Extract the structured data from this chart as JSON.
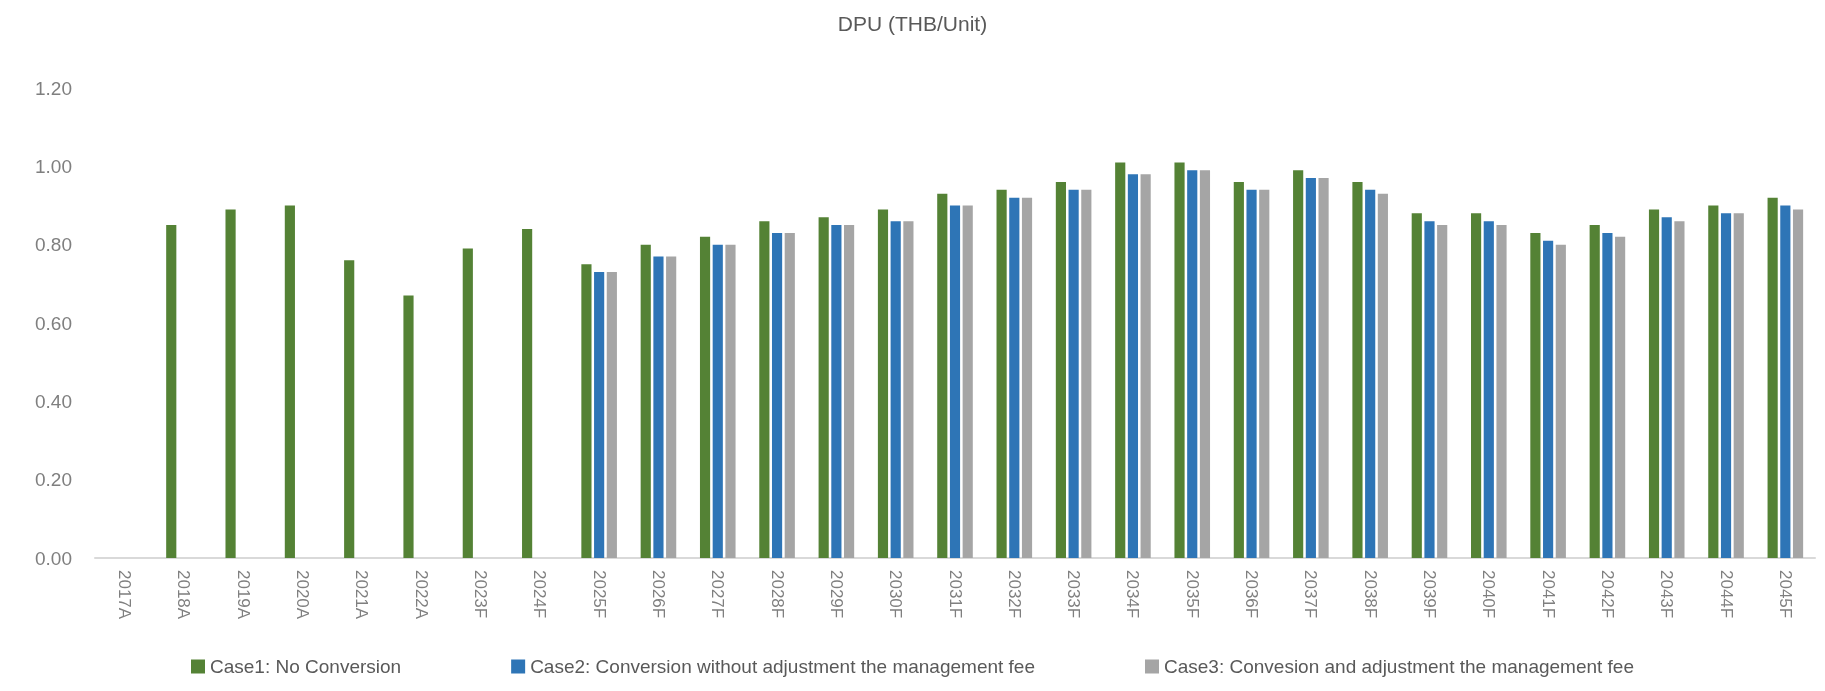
{
  "chart_data": {
    "type": "bar",
    "title": "DPU (THB/Unit)",
    "categories": [
      "2017A",
      "2018A",
      "2019A",
      "2020A",
      "2021A",
      "2022A",
      "2023F",
      "2024F",
      "2025F",
      "2026F",
      "2027F",
      "2028F",
      "2029F",
      "2030F",
      "2031F",
      "2032F",
      "2033F",
      "2034F",
      "2035F",
      "2036F",
      "2037F",
      "2038F",
      "2039F",
      "2040F",
      "2041F",
      "2042F",
      "2043F",
      "2044F",
      "2045F"
    ],
    "series": [
      {
        "name": "Case1: No Conversion",
        "color": "#548235",
        "values": [
          null,
          0.85,
          0.89,
          0.9,
          0.76,
          0.67,
          0.79,
          0.84,
          0.75,
          0.8,
          0.82,
          0.86,
          0.87,
          0.89,
          0.93,
          0.94,
          0.96,
          1.01,
          1.01,
          0.96,
          0.99,
          0.96,
          0.88,
          0.88,
          0.83,
          0.85,
          0.89,
          0.9,
          0.92
        ]
      },
      {
        "name": "Case2: Conversion without adjustment the management fee",
        "color": "#2e75b6",
        "values": [
          null,
          null,
          null,
          null,
          null,
          null,
          null,
          null,
          0.73,
          0.77,
          0.8,
          0.83,
          0.85,
          0.86,
          0.9,
          0.92,
          0.94,
          0.98,
          0.99,
          0.94,
          0.97,
          0.94,
          0.86,
          0.86,
          0.81,
          0.83,
          0.87,
          0.88,
          0.9
        ]
      },
      {
        "name": "Case3: Convesion and adjustment the management fee",
        "color": "#a5a5a5",
        "values": [
          null,
          null,
          null,
          null,
          null,
          null,
          null,
          null,
          0.73,
          0.77,
          0.8,
          0.83,
          0.85,
          0.86,
          0.9,
          0.92,
          0.94,
          0.98,
          0.99,
          0.94,
          0.97,
          0.93,
          0.85,
          0.85,
          0.8,
          0.82,
          0.86,
          0.88,
          0.89
        ]
      }
    ],
    "ylim": [
      0,
      1.2
    ],
    "yticks": [
      {
        "value": 0,
        "label": "0.00"
      },
      {
        "value": 0.2,
        "label": "0.20"
      },
      {
        "value": 0.4,
        "label": "0.40"
      },
      {
        "value": 0.6,
        "label": "0.60"
      },
      {
        "value": 0.8,
        "label": "0.80"
      },
      {
        "value": 1.0,
        "label": "1.00"
      },
      {
        "value": 1.2,
        "label": "1.20"
      }
    ],
    "grid": false,
    "legend": "bottom"
  }
}
